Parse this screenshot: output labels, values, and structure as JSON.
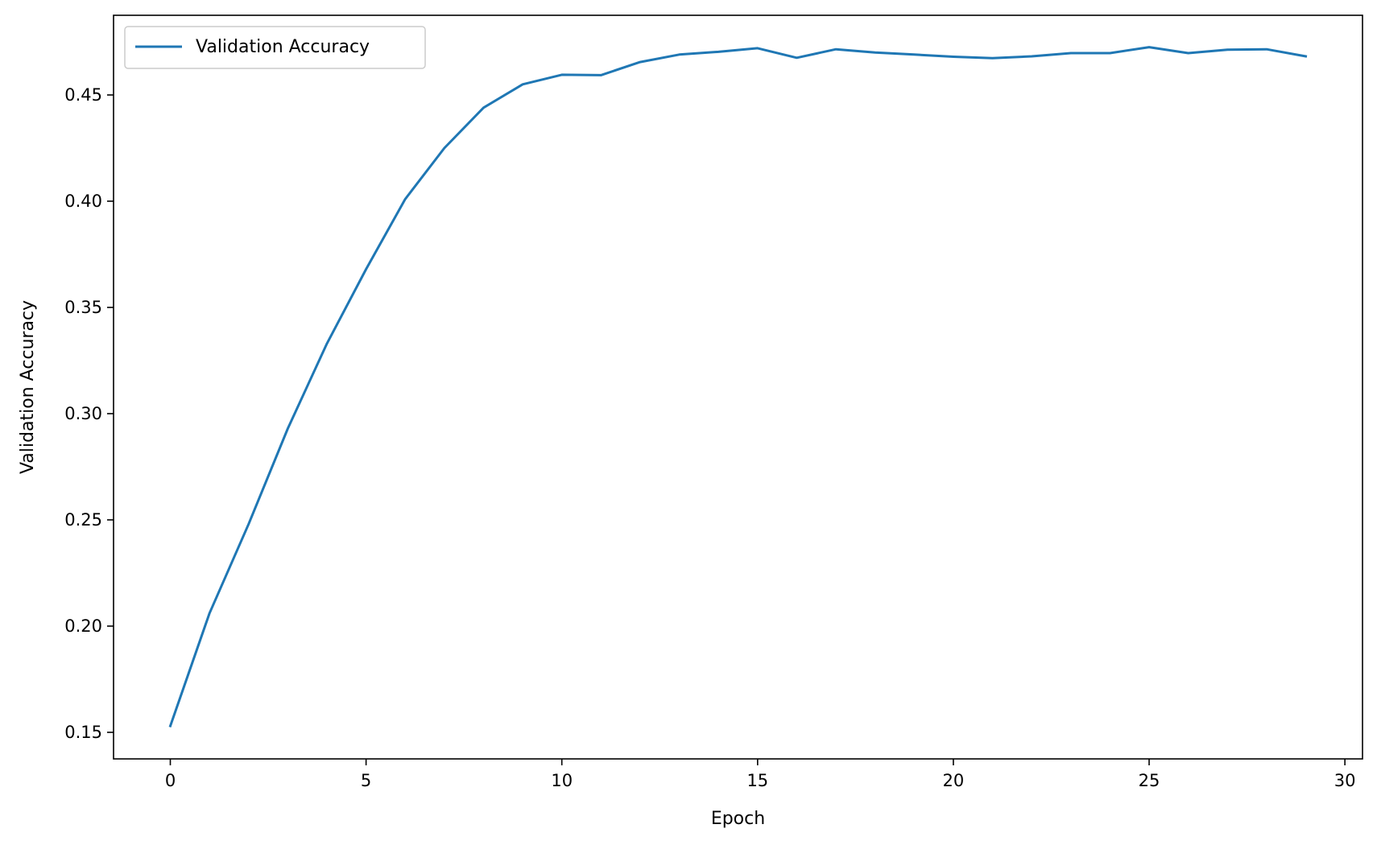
{
  "chart_data": {
    "type": "line",
    "title": "",
    "xlabel": "Epoch",
    "ylabel": "Validation Accuracy",
    "xlim": [
      -1.45,
      30.45
    ],
    "ylim": [
      0.1375,
      0.4875
    ],
    "xticks": [
      0,
      5,
      10,
      15,
      20,
      25,
      30
    ],
    "yticks": [
      0.15,
      0.2,
      0.25,
      0.3,
      0.35,
      0.4,
      0.45
    ],
    "xtick_labels": [
      "0",
      "5",
      "10",
      "15",
      "20",
      "25",
      "30"
    ],
    "ytick_labels": [
      "0.15",
      "0.20",
      "0.25",
      "0.30",
      "0.35",
      "0.40",
      "0.45"
    ],
    "grid": false,
    "legend": {
      "position": "top-left"
    },
    "series": [
      {
        "name": "Validation Accuracy",
        "color": "#1f77b4",
        "x": [
          0,
          1,
          2,
          3,
          4,
          5,
          6,
          7,
          8,
          9,
          10,
          11,
          12,
          13,
          14,
          15,
          16,
          17,
          18,
          19,
          20,
          21,
          22,
          23,
          24,
          25,
          26,
          27,
          28,
          29
        ],
        "y": [
          0.153,
          0.206,
          0.248,
          0.293,
          0.333,
          0.368,
          0.401,
          0.425,
          0.444,
          0.455,
          0.4595,
          0.4593,
          0.4655,
          0.469,
          0.4703,
          0.472,
          0.4675,
          0.4715,
          0.47,
          0.469,
          0.468,
          0.4673,
          0.4682,
          0.4697,
          0.4697,
          0.4725,
          0.4697,
          0.4713,
          0.4715,
          0.4682
        ]
      }
    ]
  }
}
